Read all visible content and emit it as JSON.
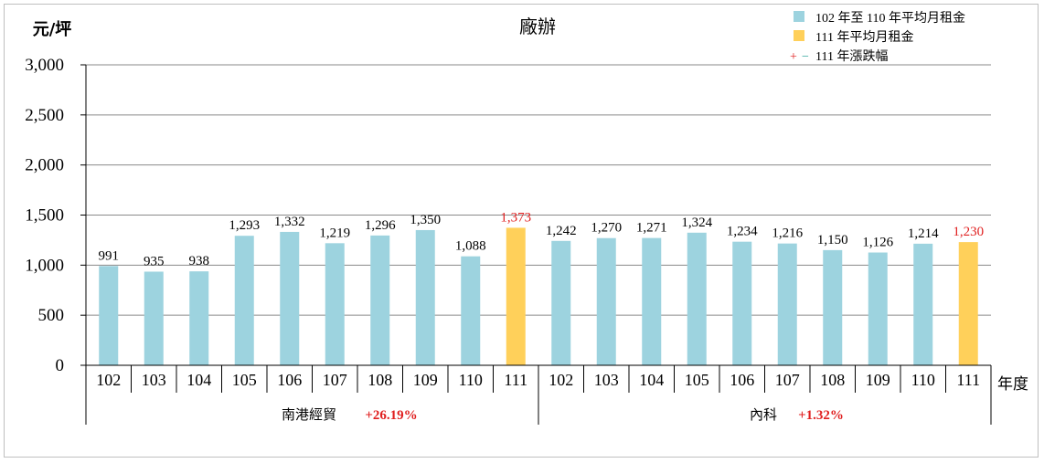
{
  "chart_data": {
    "type": "bar",
    "title": "廠辦",
    "ylabel": "元/坪",
    "xlabel": "年度",
    "ylim": [
      0,
      3000
    ],
    "yticks": [
      0,
      500,
      1000,
      1500,
      2000,
      2500,
      3000
    ],
    "ytick_labels": [
      "0",
      "500",
      "1,000",
      "1,500",
      "2,000",
      "2,500",
      "3,000"
    ],
    "grid": true,
    "legend_position": "top-right",
    "legend": [
      {
        "label": "102 年至 110 年平均月租金",
        "color": "#9dd3df"
      },
      {
        "label": "111 年平均月租金",
        "color": "#ffd05a"
      },
      {
        "label": "111 年漲跌幅",
        "prefix_plus": "+",
        "prefix_minus": "−"
      }
    ],
    "colors": {
      "base": "#9dd3df",
      "highlight": "#ffd05a",
      "change": "#e02020",
      "highlight_label": "#e02020"
    },
    "groups": [
      {
        "name": "南港經貿",
        "change": "+26.19%",
        "categories": [
          "102",
          "103",
          "104",
          "105",
          "106",
          "107",
          "108",
          "109",
          "110",
          "111"
        ],
        "values": [
          991,
          935,
          938,
          1293,
          1332,
          1219,
          1296,
          1350,
          1088,
          1373
        ],
        "labels": [
          "991",
          "935",
          "938",
          "1,293",
          "1,332",
          "1,219",
          "1,296",
          "1,350",
          "1,088",
          "1,373"
        ]
      },
      {
        "name": "內科",
        "change": "+1.32%",
        "categories": [
          "102",
          "103",
          "104",
          "105",
          "106",
          "107",
          "108",
          "109",
          "110",
          "111"
        ],
        "values": [
          1242,
          1270,
          1271,
          1324,
          1234,
          1216,
          1150,
          1126,
          1214,
          1230
        ],
        "labels": [
          "1,242",
          "1,270",
          "1,271",
          "1,324",
          "1,234",
          "1,216",
          "1,150",
          "1,126",
          "1,214",
          "1,230"
        ]
      }
    ]
  }
}
